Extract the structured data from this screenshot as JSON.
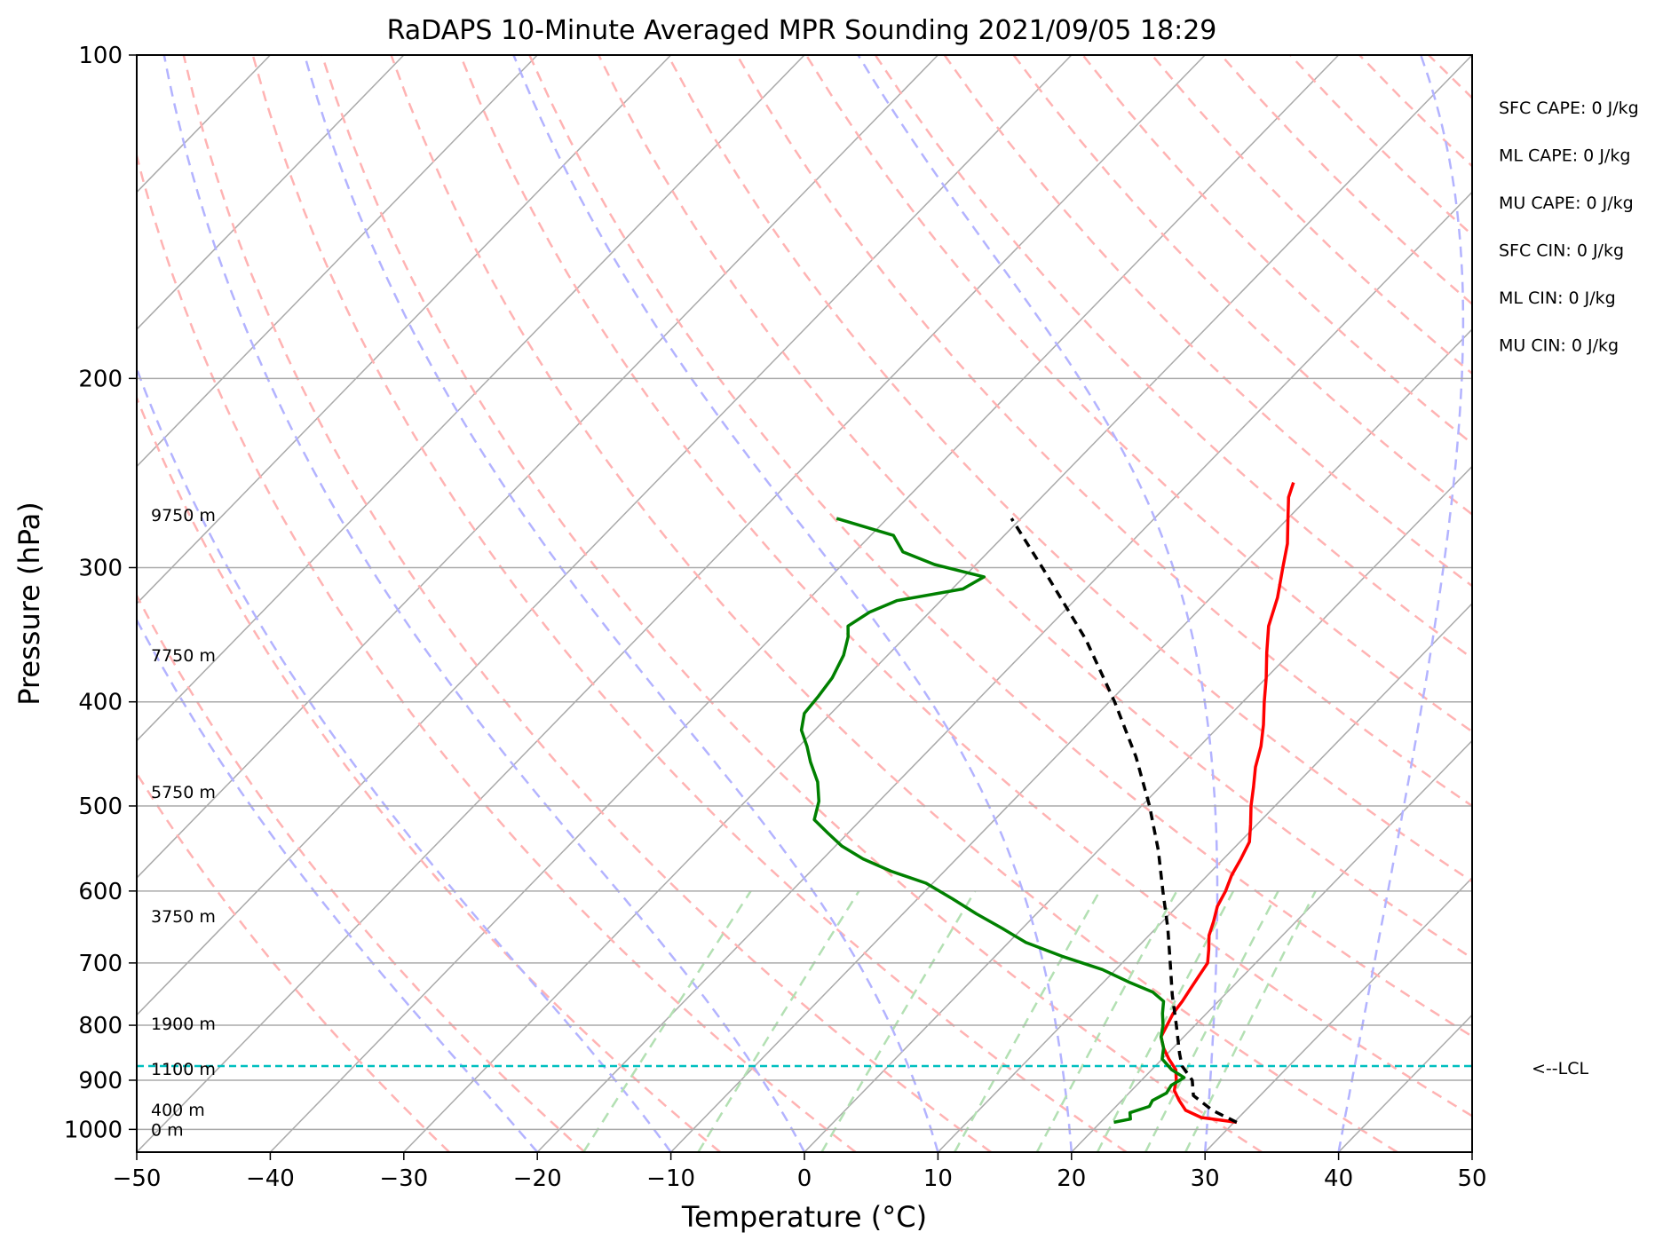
{
  "chart_data": {
    "type": "line",
    "chart_kind": "skew-T log-p sounding",
    "title": "RaDAPS 10-Minute Averaged MPR Sounding 2021/09/05 18:29",
    "xlabel": "Temperature (°C)",
    "ylabel": "Pressure (hPa)",
    "xlim": [
      -50,
      50
    ],
    "ylim": [
      1050,
      100
    ],
    "y_scale": "log",
    "x_ticks": [
      -50,
      -40,
      -30,
      -20,
      -10,
      0,
      10,
      20,
      30,
      40,
      50
    ],
    "x_tick_labels": [
      "−50",
      "−40",
      "−30",
      "−20",
      "−10",
      "0",
      "10",
      "20",
      "30",
      "40",
      "50"
    ],
    "y_ticks": [
      100,
      200,
      300,
      400,
      500,
      600,
      700,
      800,
      900,
      1000
    ],
    "y_tick_labels": [
      "100",
      "200",
      "300",
      "400",
      "500",
      "600",
      "700",
      "800",
      "900",
      "1000"
    ],
    "grid": true,
    "series": [
      {
        "color": "#ff0000",
        "role": "temperature",
        "points": [
          {
            "p": 985,
            "t": 30.2
          },
          {
            "p": 975,
            "t": 27.2
          },
          {
            "p": 960,
            "t": 25.5
          },
          {
            "p": 940,
            "t": 24.3
          },
          {
            "p": 920,
            "t": 23.2
          },
          {
            "p": 900,
            "t": 22.6
          },
          {
            "p": 880,
            "t": 21.8
          },
          {
            "p": 860,
            "t": 20.5
          },
          {
            "p": 840,
            "t": 19.3
          },
          {
            "p": 820,
            "t": 18.3
          },
          {
            "p": 800,
            "t": 17.9
          },
          {
            "p": 780,
            "t": 17.5
          },
          {
            "p": 760,
            "t": 17.3
          },
          {
            "p": 740,
            "t": 17.0
          },
          {
            "p": 720,
            "t": 16.7
          },
          {
            "p": 700,
            "t": 16.4
          },
          {
            "p": 680,
            "t": 15.5
          },
          {
            "p": 660,
            "t": 14.5
          },
          {
            "p": 640,
            "t": 13.8
          },
          {
            "p": 620,
            "t": 13.0
          },
          {
            "p": 600,
            "t": 12.5
          },
          {
            "p": 580,
            "t": 11.8
          },
          {
            "p": 560,
            "t": 11.3
          },
          {
            "p": 540,
            "t": 10.7
          },
          {
            "p": 520,
            "t": 9.5
          },
          {
            "p": 500,
            "t": 8.2
          },
          {
            "p": 480,
            "t": 7.0
          },
          {
            "p": 460,
            "t": 5.7
          },
          {
            "p": 440,
            "t": 4.6
          },
          {
            "p": 420,
            "t": 3.2
          },
          {
            "p": 400,
            "t": 1.6
          },
          {
            "p": 380,
            "t": 0.0
          },
          {
            "p": 360,
            "t": -1.8
          },
          {
            "p": 340,
            "t": -3.6
          },
          {
            "p": 320,
            "t": -5.0
          },
          {
            "p": 300,
            "t": -6.8
          },
          {
            "p": 285,
            "t": -8.2
          },
          {
            "p": 270,
            "t": -10.0
          },
          {
            "p": 258,
            "t": -11.5
          },
          {
            "p": 250,
            "t": -12.2
          }
        ]
      },
      {
        "color": "#008000",
        "role": "dewpoint",
        "points": [
          {
            "p": 985,
            "t": 21.0
          },
          {
            "p": 978,
            "t": 22.0
          },
          {
            "p": 965,
            "t": 21.5
          },
          {
            "p": 952,
            "t": 22.5
          },
          {
            "p": 940,
            "t": 22.3
          },
          {
            "p": 925,
            "t": 22.8
          },
          {
            "p": 910,
            "t": 22.6
          },
          {
            "p": 895,
            "t": 23.0
          },
          {
            "p": 880,
            "t": 21.5
          },
          {
            "p": 860,
            "t": 20.0
          },
          {
            "p": 840,
            "t": 19.3
          },
          {
            "p": 820,
            "t": 18.3
          },
          {
            "p": 800,
            "t": 17.6
          },
          {
            "p": 780,
            "t": 16.7
          },
          {
            "p": 760,
            "t": 15.9
          },
          {
            "p": 745,
            "t": 14.4
          },
          {
            "p": 730,
            "t": 12.0
          },
          {
            "p": 710,
            "t": 9.0
          },
          {
            "p": 690,
            "t": 5.0
          },
          {
            "p": 670,
            "t": 1.3
          },
          {
            "p": 650,
            "t": -1.5
          },
          {
            "p": 630,
            "t": -4.5
          },
          {
            "p": 610,
            "t": -7.4
          },
          {
            "p": 590,
            "t": -10.5
          },
          {
            "p": 575,
            "t": -14.0
          },
          {
            "p": 560,
            "t": -17.0
          },
          {
            "p": 545,
            "t": -19.5
          },
          {
            "p": 530,
            "t": -21.5
          },
          {
            "p": 515,
            "t": -23.5
          },
          {
            "p": 495,
            "t": -24.5
          },
          {
            "p": 475,
            "t": -26.0
          },
          {
            "p": 455,
            "t": -28.0
          },
          {
            "p": 440,
            "t": -29.4
          },
          {
            "p": 425,
            "t": -31.0
          },
          {
            "p": 410,
            "t": -32.0
          },
          {
            "p": 395,
            "t": -32.2
          },
          {
            "p": 380,
            "t": -32.5
          },
          {
            "p": 362,
            "t": -33.3
          },
          {
            "p": 348,
            "t": -34.3
          },
          {
            "p": 340,
            "t": -35.1
          },
          {
            "p": 330,
            "t": -34.5
          },
          {
            "p": 322,
            "t": -33.3
          },
          {
            "p": 314,
            "t": -29.2
          },
          {
            "p": 306,
            "t": -28.5
          },
          {
            "p": 298,
            "t": -33.1
          },
          {
            "p": 290,
            "t": -36.4
          },
          {
            "p": 280,
            "t": -38.3
          },
          {
            "p": 270,
            "t": -43.8
          }
        ]
      },
      {
        "color": "#000000",
        "role": "parcel",
        "dashed": true,
        "points": [
          {
            "p": 985,
            "t": 30.2
          },
          {
            "p": 960,
            "t": 27.5
          },
          {
            "p": 930,
            "t": 25.0
          },
          {
            "p": 900,
            "t": 23.8
          },
          {
            "p": 873,
            "t": 22.0
          },
          {
            "p": 850,
            "t": 20.9
          },
          {
            "p": 800,
            "t": 18.6
          },
          {
            "p": 750,
            "t": 16.1
          },
          {
            "p": 700,
            "t": 13.6
          },
          {
            "p": 650,
            "t": 10.9
          },
          {
            "p": 600,
            "t": 7.8
          },
          {
            "p": 550,
            "t": 4.5
          },
          {
            "p": 500,
            "t": 0.6
          },
          {
            "p": 450,
            "t": -4.0
          },
          {
            "p": 400,
            "t": -9.6
          },
          {
            "p": 350,
            "t": -16.3
          },
          {
            "p": 300,
            "t": -24.8
          },
          {
            "p": 270,
            "t": -30.7
          }
        ]
      }
    ],
    "lcl": {
      "pressure": 873,
      "label": "<--LCL",
      "color": "#00bfbf"
    },
    "indices": [
      "SFC CAPE: 0 J/kg",
      "ML CAPE: 0 J/kg",
      "MU CAPE: 0 J/kg",
      "SFC CIN: 0 J/kg",
      "ML CIN: 0 J/kg",
      "MU CIN: 0 J/kg"
    ],
    "height_labels": [
      {
        "label": "9750 m",
        "pressure": 268
      },
      {
        "label": "7750 m",
        "pressure": 362
      },
      {
        "label": "5750 m",
        "pressure": 485
      },
      {
        "label": "3750 m",
        "pressure": 633
      },
      {
        "label": "1900 m",
        "pressure": 797
      },
      {
        "label": "1100 m",
        "pressure": 878
      },
      {
        "label": "400 m",
        "pressure": 958
      },
      {
        "label": "0 m",
        "pressure": 1000
      }
    ],
    "background_lines": {
      "isotherm_color": "#aaaaaa",
      "dry_adiabat_color": "#ffb3b3",
      "moist_adiabat_color": "#b3b3ff",
      "mixing_ratio_color": "#b3e0b3"
    }
  }
}
